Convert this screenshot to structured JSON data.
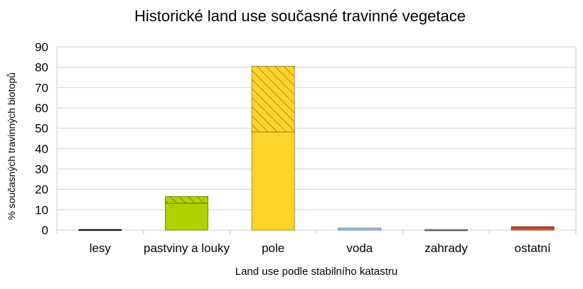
{
  "chart_data": {
    "type": "bar",
    "stacked": true,
    "title": "Historické land use současné travinné vegetace",
    "xlabel": "Land use podle stabilního katastru",
    "ylabel": "% současných travinných biotopů",
    "ylim": [
      0,
      90
    ],
    "yticks": [
      0,
      10,
      20,
      30,
      40,
      50,
      60,
      70,
      80,
      90
    ],
    "grid": true,
    "legend": "none",
    "categories": [
      "lesy",
      "pastviny a louky",
      "pole",
      "voda",
      "zahrady",
      "ostatní"
    ],
    "colors": [
      "#222222",
      "#aed100",
      "#ffd32a",
      "#9fc8ee",
      "#8a7a8a",
      "#e0553a"
    ],
    "series": [
      {
        "pattern": "solid",
        "values": [
          0.3,
          13.2,
          48.2,
          1.0,
          0.2,
          1.1
        ]
      },
      {
        "pattern": "hatched",
        "values": [
          0.0,
          3.3,
          32.3,
          0.0,
          0.0,
          0.6
        ]
      }
    ]
  }
}
